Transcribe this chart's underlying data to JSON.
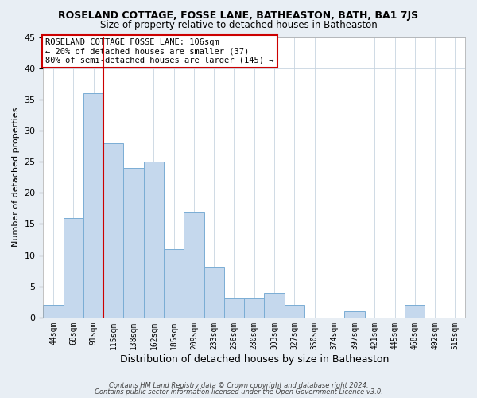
{
  "title": "ROSELAND COTTAGE, FOSSE LANE, BATHEASTON, BATH, BA1 7JS",
  "subtitle": "Size of property relative to detached houses in Batheaston",
  "xlabel": "Distribution of detached houses by size in Batheaston",
  "ylabel": "Number of detached properties",
  "footnote1": "Contains HM Land Registry data © Crown copyright and database right 2024.",
  "footnote2": "Contains public sector information licensed under the Open Government Licence v3.0.",
  "bin_labels": [
    "44sqm",
    "68sqm",
    "91sqm",
    "115sqm",
    "138sqm",
    "162sqm",
    "185sqm",
    "209sqm",
    "233sqm",
    "256sqm",
    "280sqm",
    "303sqm",
    "327sqm",
    "350sqm",
    "374sqm",
    "397sqm",
    "421sqm",
    "445sqm",
    "468sqm",
    "492sqm",
    "515sqm"
  ],
  "bar_values": [
    2,
    16,
    36,
    28,
    24,
    25,
    11,
    17,
    8,
    3,
    3,
    4,
    2,
    0,
    0,
    1,
    0,
    0,
    2,
    0,
    0
  ],
  "bar_color": "#c5d8ed",
  "bar_edge_color": "#7aadd4",
  "vline_x_index": 2.5,
  "vline_color": "#cc0000",
  "annotation_text": "ROSELAND COTTAGE FOSSE LANE: 106sqm\n← 20% of detached houses are smaller (37)\n80% of semi-detached houses are larger (145) →",
  "annotation_box_color": "#cc0000",
  "ylim": [
    0,
    45
  ],
  "yticks": [
    0,
    5,
    10,
    15,
    20,
    25,
    30,
    35,
    40,
    45
  ],
  "bg_color": "#e8eef4",
  "plot_bg_color": "#ffffff",
  "grid_color": "#c8d4e0"
}
